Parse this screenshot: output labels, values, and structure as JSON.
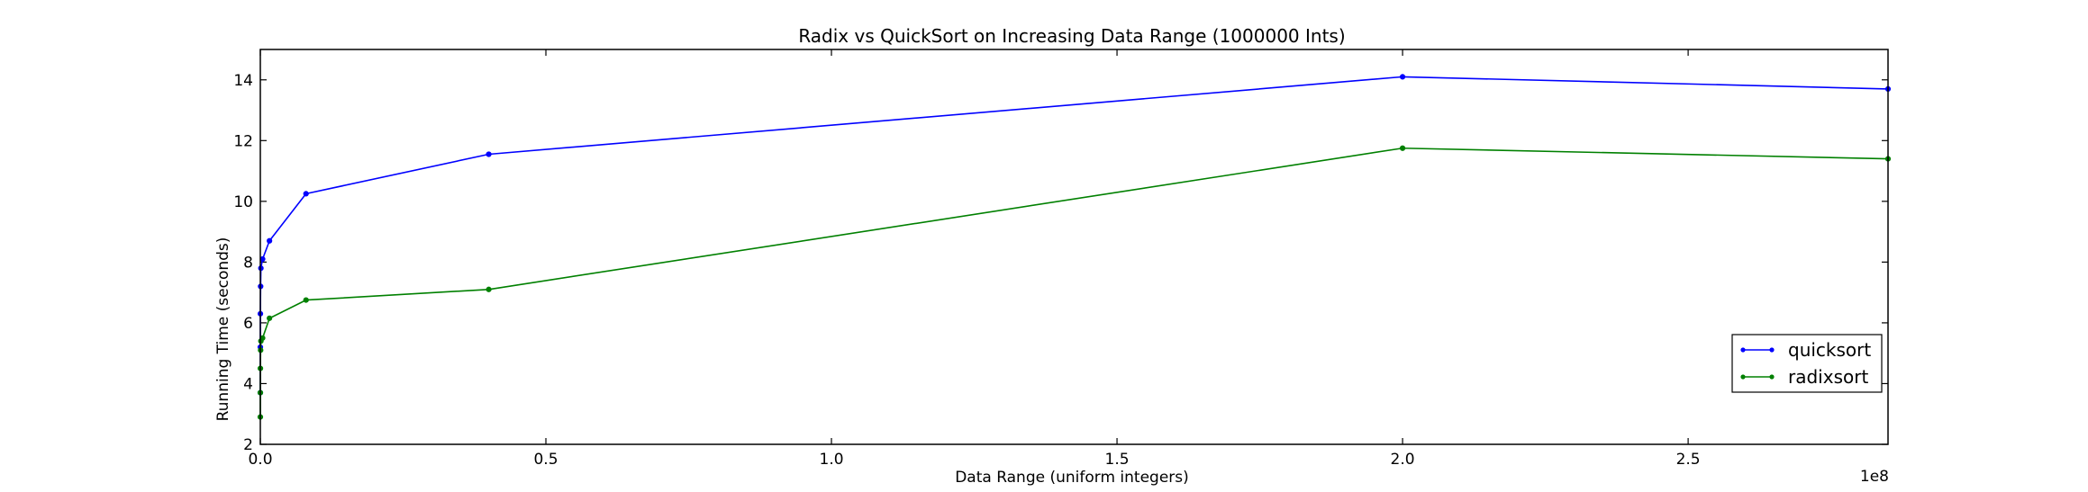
{
  "chart_data": {
    "type": "line",
    "title": "Radix vs QuickSort on Increasing Data Range (1000000 Ints)",
    "xlabel": "Data Range (uniform integers)",
    "ylabel": "Running Time (seconds)",
    "x_offset_label": "1e8",
    "xlim": [
      0,
      2.85
    ],
    "ylim": [
      2,
      15
    ],
    "xticks": [
      0.0,
      0.5,
      1.0,
      1.5,
      2.0,
      2.5
    ],
    "xtick_labels": [
      "0.0",
      "0.5",
      "1.0",
      "1.5",
      "2.0",
      "2.5"
    ],
    "yticks": [
      2,
      4,
      6,
      8,
      10,
      12,
      14
    ],
    "ytick_labels": [
      "2",
      "4",
      "6",
      "8",
      "10",
      "12",
      "14"
    ],
    "grid": false,
    "legend_position": "lower-right",
    "series": [
      {
        "name": "quicksort",
        "color": "#0000ff",
        "x": [
          1e-06,
          1e-05,
          0.0001,
          0.0005,
          0.001,
          0.004,
          0.016,
          0.08,
          0.4,
          2.0,
          2.85
        ],
        "y": [
          3.7,
          5.2,
          6.3,
          7.2,
          7.8,
          8.1,
          8.7,
          10.25,
          11.55,
          14.1,
          13.7
        ]
      },
      {
        "name": "radixsort",
        "color": "#008000",
        "x": [
          1e-06,
          1e-05,
          0.0001,
          0.0005,
          0.001,
          0.004,
          0.016,
          0.08,
          0.4,
          2.0,
          2.85
        ],
        "y": [
          2.9,
          3.7,
          4.5,
          5.1,
          5.4,
          5.5,
          6.15,
          6.75,
          7.1,
          11.75,
          11.4
        ]
      }
    ]
  }
}
